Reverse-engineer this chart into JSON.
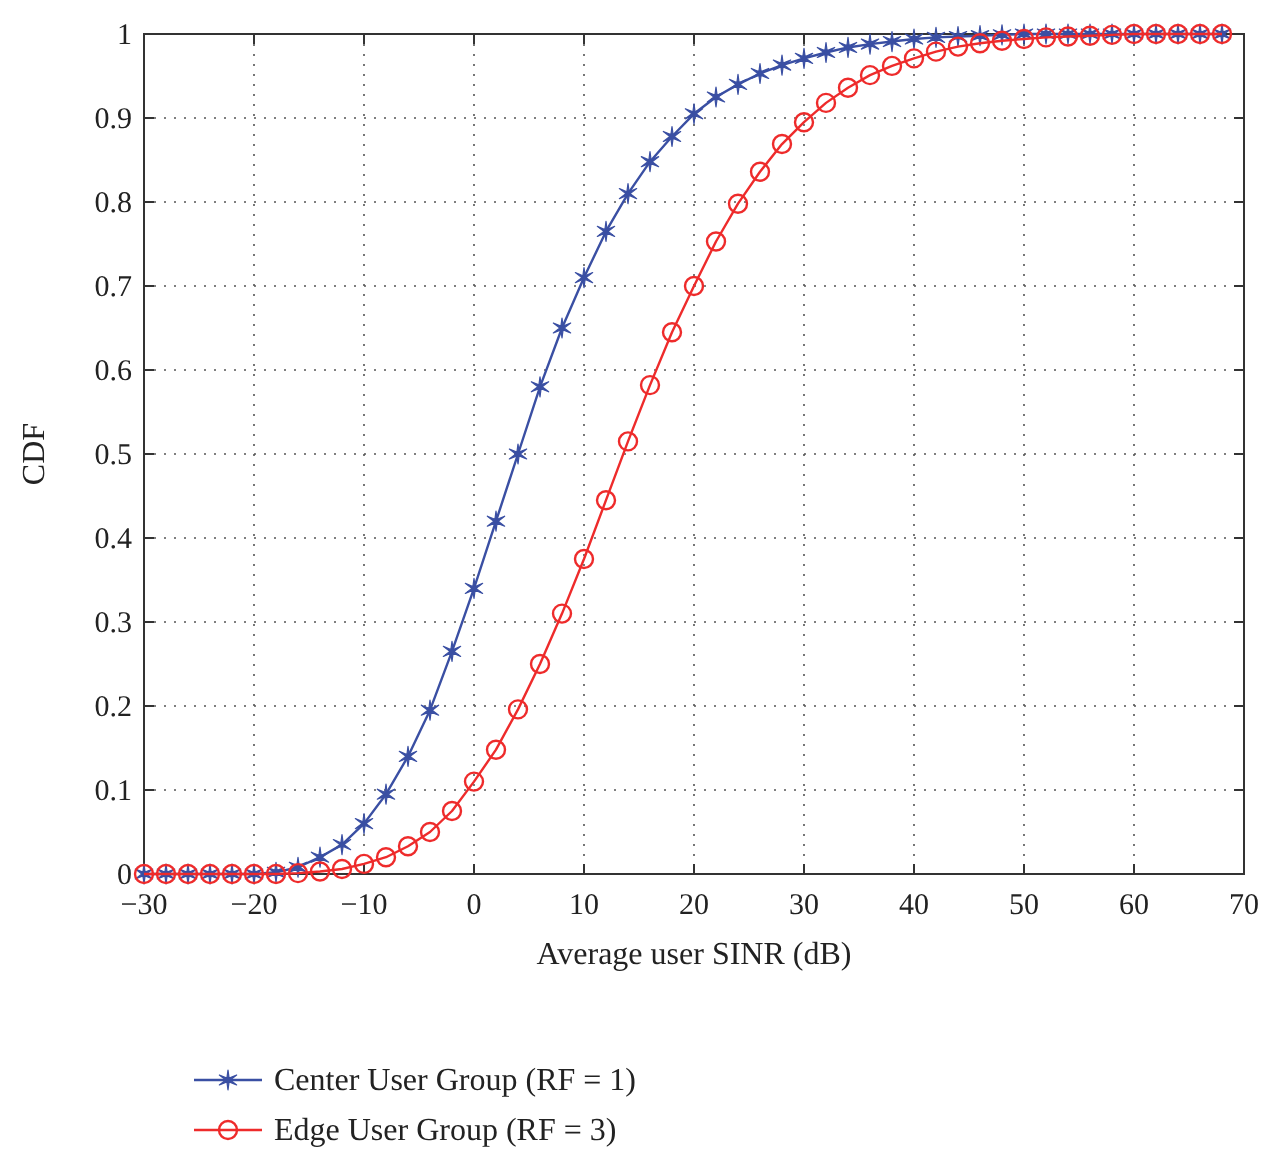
{
  "chart_data": {
    "type": "line",
    "xlabel": "Average user SINR (dB)",
    "ylabel": "CDF",
    "x": [
      -30,
      -28,
      -26,
      -24,
      -22,
      -20,
      -18,
      -16,
      -14,
      -12,
      -10,
      -8,
      -6,
      -4,
      -2,
      0,
      2,
      4,
      6,
      8,
      10,
      12,
      14,
      16,
      18,
      20,
      22,
      24,
      26,
      28,
      30,
      32,
      34,
      36,
      38,
      40,
      42,
      44,
      46,
      48,
      50,
      52,
      54,
      56,
      58,
      60,
      62,
      64,
      66,
      68
    ],
    "series": [
      {
        "name": "Center User Group (RF = 1)",
        "color": "#3a4fa3",
        "marker": "cross",
        "values": [
          0,
          0,
          0,
          0,
          0,
          0,
          0.002,
          0.008,
          0.02,
          0.035,
          0.06,
          0.095,
          0.14,
          0.195,
          0.265,
          0.34,
          0.42,
          0.5,
          0.58,
          0.65,
          0.71,
          0.765,
          0.81,
          0.848,
          0.878,
          0.905,
          0.925,
          0.94,
          0.953,
          0.963,
          0.971,
          0.978,
          0.984,
          0.988,
          0.991,
          0.994,
          0.996,
          0.997,
          0.998,
          0.999,
          1,
          1,
          1,
          1,
          1,
          1,
          1,
          1,
          1,
          1
        ]
      },
      {
        "name": "Edge User Group (RF = 3)",
        "color": "#ee2b2b",
        "marker": "circle",
        "values": [
          0,
          0,
          0,
          0,
          0,
          0,
          0,
          0.001,
          0.003,
          0.006,
          0.012,
          0.02,
          0.033,
          0.05,
          0.075,
          0.11,
          0.148,
          0.196,
          0.25,
          0.31,
          0.375,
          0.445,
          0.515,
          0.582,
          0.645,
          0.7,
          0.753,
          0.798,
          0.836,
          0.869,
          0.895,
          0.918,
          0.936,
          0.951,
          0.962,
          0.971,
          0.979,
          0.985,
          0.989,
          0.992,
          0.994,
          0.996,
          0.997,
          0.998,
          0.999,
          1,
          1,
          1,
          1,
          1
        ]
      }
    ],
    "xlim": [
      -30,
      70
    ],
    "xticks": [
      -30,
      -20,
      -10,
      0,
      10,
      20,
      30,
      40,
      50,
      60,
      70
    ],
    "ylim": [
      0,
      1
    ],
    "yticks": [
      0,
      0.1,
      0.2,
      0.3,
      0.4,
      0.5,
      0.6,
      0.7,
      0.8,
      0.9,
      1
    ],
    "grid": true,
    "legend": "bottom",
    "line_style": "solid"
  }
}
